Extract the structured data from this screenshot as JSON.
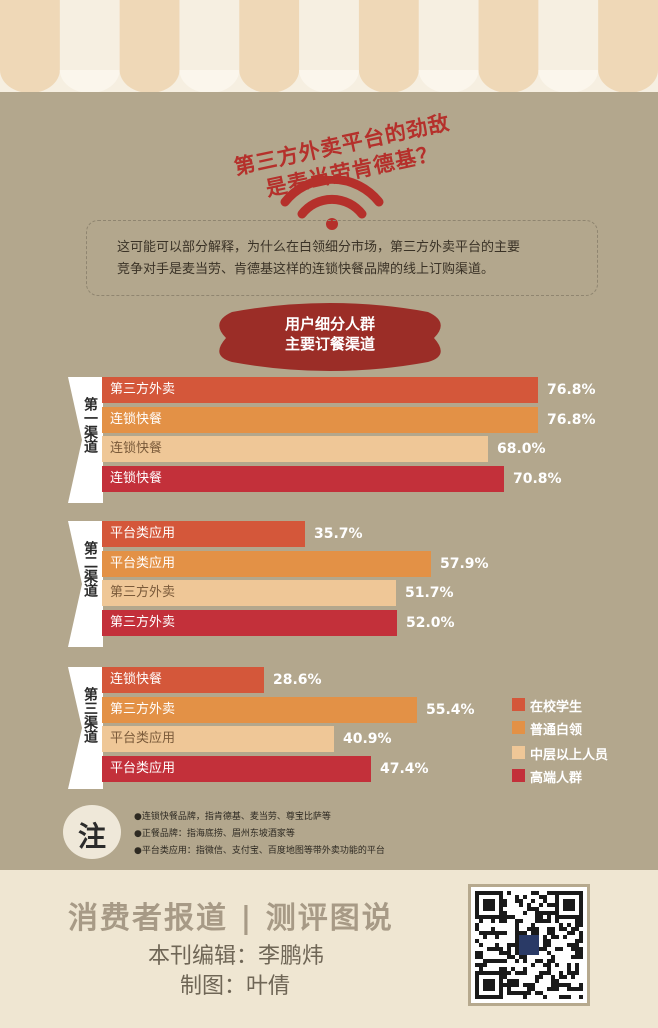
{
  "title": {
    "line1": "第三方外卖平台的劲敌",
    "line2": "是麦当劳肯德基？"
  },
  "intro": {
    "line1": "这可能可以部分解释，为什么在白领细分市场，第三方外卖平台的主要",
    "line2": "竞争对手是麦当劳、肯德基这样的连锁快餐品牌的线上订购渠道。"
  },
  "banner": {
    "line1": "用户细分人群",
    "line2": "主要订餐渠道"
  },
  "chart_data": {
    "type": "bar",
    "orientation": "horizontal",
    "value_suffix": "%",
    "groups": [
      {
        "label": "第一渠道",
        "bars": [
          {
            "segment": "在校学生",
            "channel": "第三方外卖",
            "value": 76.8,
            "value_label": "76.8%"
          },
          {
            "segment": "普通白领",
            "channel": "连锁快餐",
            "value": 76.8,
            "value_label": "76.8%"
          },
          {
            "segment": "中层以上人员",
            "channel": "连锁快餐",
            "value": 68.0,
            "value_label": "68.0%"
          },
          {
            "segment": "高端人群",
            "channel": "连锁快餐",
            "value": 70.8,
            "value_label": "70.8%"
          }
        ]
      },
      {
        "label": "第二渠道",
        "bars": [
          {
            "segment": "在校学生",
            "channel": "平台类应用",
            "value": 35.7,
            "value_label": "35.7%"
          },
          {
            "segment": "普通白领",
            "channel": "平台类应用",
            "value": 57.9,
            "value_label": "57.9%"
          },
          {
            "segment": "中层以上人员",
            "channel": "第三方外卖",
            "value": 51.7,
            "value_label": "51.7%"
          },
          {
            "segment": "高端人群",
            "channel": "第三方外卖",
            "value": 52.0,
            "value_label": "52.0%"
          }
        ]
      },
      {
        "label": "第三渠道",
        "bars": [
          {
            "segment": "在校学生",
            "channel": "连锁快餐",
            "value": 28.6,
            "value_label": "28.6%"
          },
          {
            "segment": "普通白领",
            "channel": "第三方外卖",
            "value": 55.4,
            "value_label": "55.4%"
          },
          {
            "segment": "中层以上人员",
            "channel": "平台类应用",
            "value": 40.9,
            "value_label": "40.9%"
          },
          {
            "segment": "高端人群",
            "channel": "平台类应用",
            "value": 47.4,
            "value_label": "47.4%"
          }
        ]
      }
    ],
    "legend": [
      {
        "name": "在校学生",
        "color": "#d4573a"
      },
      {
        "name": "普通白领",
        "color": "#e39146"
      },
      {
        "name": "中层以上人员",
        "color": "#efc797"
      },
      {
        "name": "高端人群",
        "color": "#c3303a"
      }
    ],
    "legend_position": "right",
    "grid": false
  },
  "notes": {
    "mark": "注",
    "lines": [
      "●连锁快餐品牌，指肯德基、麦当劳、尊宝比萨等",
      "●正餐品牌：指海底捞、眉州东坡酒家等",
      "●平台类应用：指微信、支付宝、百度地图等带外卖功能的平台"
    ]
  },
  "footer": {
    "title": "消费者报道 | 测评图说",
    "editor": "本刊编辑：李鹏炜",
    "designer": "制图：叶倩"
  },
  "colors": {
    "background": "#b3a78d",
    "title_red": "#b5302b",
    "awning_stripe": "#efd8b7",
    "footer_bg": "#efe6d2"
  },
  "icons": {
    "wifi": "wifi-icon",
    "qr": "qr-code"
  }
}
